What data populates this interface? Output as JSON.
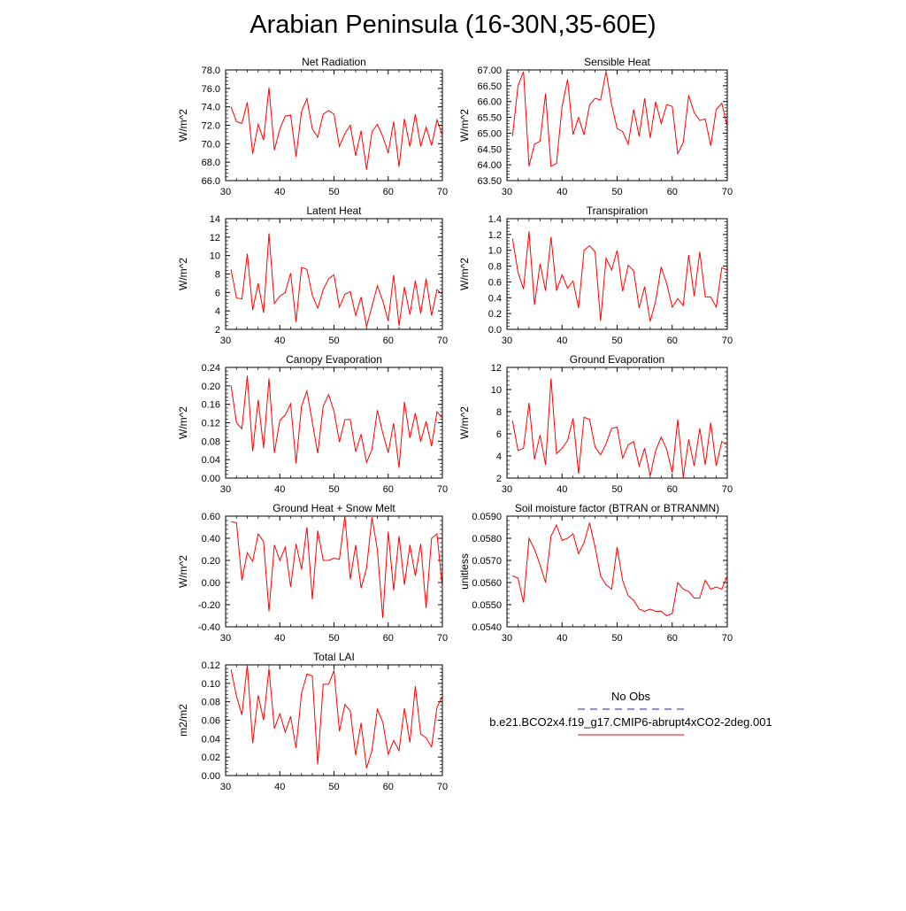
{
  "title": "Arabian Peninsula (16-30N,35-60E)",
  "colors": {
    "model_line": "#ff0000",
    "obs_line": "#2222aa",
    "axis": "#000000"
  },
  "legend": {
    "obs_label": "No Obs",
    "model_label": "b.e21.BCO2x4.f19_g17.CMIP6-abrupt4xCO2-2deg.001"
  },
  "chart_data": [
    {
      "type": "line",
      "title": "Net Radiation",
      "ylabel": "W/m^2",
      "xlim": [
        31,
        70
      ],
      "ylim": [
        66,
        78
      ],
      "xticks": [
        30,
        40,
        50,
        60,
        70
      ],
      "yticks": [
        "66.0",
        "68.0",
        "70.0",
        "72.0",
        "74.0",
        "76.0",
        "78.0"
      ],
      "x": [
        31,
        32,
        33,
        34,
        35,
        36,
        37,
        38,
        39,
        40,
        41,
        42,
        43,
        44,
        45,
        46,
        47,
        48,
        49,
        50,
        51,
        52,
        53,
        54,
        55,
        56,
        57,
        58,
        59,
        60,
        61,
        62,
        63,
        64,
        65,
        66,
        67,
        68,
        69,
        70
      ],
      "series": [
        {
          "values": [
            74.0,
            72.4,
            72.2,
            74.5,
            68.9,
            72.1,
            70.4,
            76.1,
            69.3,
            71.6,
            73.0,
            73.1,
            68.6,
            73.5,
            74.9,
            71.6,
            70.7,
            73.2,
            73.6,
            73.2,
            69.7,
            71.1,
            72.0,
            68.7,
            71.4,
            67.2,
            71.3,
            72.1,
            70.8,
            69.0,
            72.4,
            67.5,
            72.7,
            69.7,
            73.2,
            69.7,
            71.8,
            69.8,
            72.6,
            70.9
          ]
        }
      ]
    },
    {
      "type": "line",
      "title": "Sensible Heat",
      "ylabel": "W/m^2",
      "xlim": [
        31,
        70
      ],
      "ylim": [
        63.5,
        67
      ],
      "xticks": [
        30,
        40,
        50,
        60,
        70
      ],
      "yticks": [
        "63.50",
        "64.00",
        "64.50",
        "65.00",
        "65.50",
        "66.00",
        "66.50",
        "67.00"
      ],
      "x": [
        31,
        32,
        33,
        34,
        35,
        36,
        37,
        38,
        39,
        40,
        41,
        42,
        43,
        44,
        45,
        46,
        47,
        48,
        49,
        50,
        51,
        52,
        53,
        54,
        55,
        56,
        57,
        58,
        59,
        60,
        61,
        62,
        63,
        64,
        65,
        66,
        67,
        68,
        69,
        70
      ],
      "series": [
        {
          "values": [
            64.9,
            66.5,
            66.95,
            63.95,
            64.65,
            64.75,
            66.25,
            63.95,
            64.05,
            65.85,
            66.7,
            64.95,
            65.5,
            64.95,
            65.9,
            66.1,
            66.05,
            66.95,
            65.9,
            65.15,
            65.05,
            64.65,
            65.75,
            64.9,
            66.1,
            64.85,
            66.0,
            65.3,
            65.9,
            65.85,
            64.35,
            64.7,
            66.2,
            65.65,
            65.4,
            65.45,
            64.6,
            65.75,
            65.95,
            65.2
          ]
        }
      ]
    },
    {
      "type": "line",
      "title": "Latent Heat",
      "ylabel": "W/m^2",
      "xlim": [
        31,
        70
      ],
      "ylim": [
        2,
        14
      ],
      "xticks": [
        30,
        40,
        50,
        60,
        70
      ],
      "yticks": [
        "2",
        "4",
        "6",
        "8",
        "10",
        "12",
        "14"
      ],
      "x": [
        31,
        32,
        33,
        34,
        35,
        36,
        37,
        38,
        39,
        40,
        41,
        42,
        43,
        44,
        45,
        46,
        47,
        48,
        49,
        50,
        51,
        52,
        53,
        54,
        55,
        56,
        57,
        58,
        59,
        60,
        61,
        62,
        63,
        64,
        65,
        66,
        67,
        68,
        69,
        70
      ],
      "series": [
        {
          "values": [
            8.5,
            5.4,
            5.3,
            10.2,
            4.1,
            7.0,
            3.8,
            12.4,
            4.8,
            5.6,
            6.0,
            8.1,
            2.8,
            8.7,
            8.5,
            5.7,
            4.3,
            6.3,
            7.5,
            7.9,
            4.4,
            5.8,
            6.1,
            3.5,
            5.5,
            2.3,
            4.5,
            6.7,
            5.1,
            2.9,
            7.9,
            2.4,
            6.6,
            3.6,
            7.3,
            3.7,
            7.5,
            3.5,
            6.3,
            5.8
          ]
        }
      ]
    },
    {
      "type": "line",
      "title": "Transpiration",
      "ylabel": "W/m^2",
      "xlim": [
        31,
        70
      ],
      "ylim": [
        0,
        1.4
      ],
      "xticks": [
        30,
        40,
        50,
        60,
        70
      ],
      "yticks": [
        "0.0",
        "0.2",
        "0.4",
        "0.6",
        "0.8",
        "1.0",
        "1.2",
        "1.4"
      ],
      "x": [
        31,
        32,
        33,
        34,
        35,
        36,
        37,
        38,
        39,
        40,
        41,
        42,
        43,
        44,
        45,
        46,
        47,
        48,
        49,
        50,
        51,
        52,
        53,
        54,
        55,
        56,
        57,
        58,
        59,
        60,
        61,
        62,
        63,
        64,
        65,
        66,
        67,
        68,
        69,
        70
      ],
      "series": [
        {
          "values": [
            1.15,
            0.72,
            0.51,
            1.24,
            0.31,
            0.83,
            0.49,
            1.17,
            0.49,
            0.69,
            0.52,
            0.61,
            0.27,
            1.0,
            1.06,
            0.98,
            0.11,
            0.9,
            0.75,
            1.0,
            0.48,
            0.81,
            0.74,
            0.27,
            0.54,
            0.1,
            0.36,
            0.79,
            0.58,
            0.28,
            0.39,
            0.3,
            0.94,
            0.42,
            0.98,
            0.41,
            0.41,
            0.28,
            0.78,
            0.75
          ]
        }
      ]
    },
    {
      "type": "line",
      "title": "Canopy Evaporation",
      "ylabel": "W/m^2",
      "xlim": [
        31,
        70
      ],
      "ylim": [
        0,
        0.24
      ],
      "xticks": [
        30,
        40,
        50,
        60,
        70
      ],
      "yticks": [
        "0.00",
        "0.04",
        "0.08",
        "0.12",
        "0.16",
        "0.20",
        "0.24"
      ],
      "x": [
        31,
        32,
        33,
        34,
        35,
        36,
        37,
        38,
        39,
        40,
        41,
        42,
        43,
        44,
        45,
        46,
        47,
        48,
        49,
        50,
        51,
        52,
        53,
        54,
        55,
        56,
        57,
        58,
        59,
        60,
        61,
        62,
        63,
        64,
        65,
        66,
        67,
        68,
        69,
        70
      ],
      "series": [
        {
          "values": [
            0.201,
            0.12,
            0.107,
            0.222,
            0.058,
            0.17,
            0.065,
            0.216,
            0.055,
            0.125,
            0.137,
            0.161,
            0.032,
            0.156,
            0.189,
            0.121,
            0.054,
            0.156,
            0.181,
            0.145,
            0.078,
            0.127,
            0.127,
            0.057,
            0.095,
            0.034,
            0.062,
            0.147,
            0.098,
            0.055,
            0.119,
            0.022,
            0.165,
            0.087,
            0.141,
            0.079,
            0.123,
            0.069,
            0.144,
            0.13
          ]
        }
      ]
    },
    {
      "type": "line",
      "title": "Ground Evaporation",
      "ylabel": "W/m^2",
      "xlim": [
        31,
        70
      ],
      "ylim": [
        2,
        12
      ],
      "xticks": [
        30,
        40,
        50,
        60,
        70
      ],
      "yticks": [
        "2",
        "4",
        "6",
        "8",
        "10",
        "12"
      ],
      "x": [
        31,
        32,
        33,
        34,
        35,
        36,
        37,
        38,
        39,
        40,
        41,
        42,
        43,
        44,
        45,
        46,
        47,
        48,
        49,
        50,
        51,
        52,
        53,
        54,
        55,
        56,
        57,
        58,
        59,
        60,
        61,
        62,
        63,
        64,
        65,
        66,
        67,
        68,
        69,
        70
      ],
      "series": [
        {
          "values": [
            7.2,
            4.5,
            4.7,
            8.8,
            3.7,
            5.9,
            3.2,
            11.0,
            4.2,
            4.7,
            5.4,
            7.4,
            2.4,
            7.5,
            7.3,
            4.8,
            4.1,
            5.1,
            6.5,
            6.6,
            3.8,
            5.0,
            5.3,
            3.1,
            4.7,
            2.2,
            4.5,
            5.7,
            4.6,
            2.5,
            7.3,
            2.1,
            5.5,
            3.1,
            6.5,
            3.2,
            7.0,
            3.1,
            5.3,
            5.0
          ]
        }
      ]
    },
    {
      "type": "line",
      "title": "Ground Heat + Snow Melt",
      "ylabel": "W/m^2",
      "xlim": [
        31,
        70
      ],
      "ylim": [
        -0.4,
        0.6
      ],
      "xticks": [
        30,
        40,
        50,
        60,
        70
      ],
      "yticks": [
        "-0.40",
        "-0.20",
        "0.00",
        "0.20",
        "0.40",
        "0.60"
      ],
      "x": [
        31,
        32,
        33,
        34,
        35,
        36,
        37,
        38,
        39,
        40,
        41,
        42,
        43,
        44,
        45,
        46,
        47,
        48,
        49,
        50,
        51,
        52,
        53,
        54,
        55,
        56,
        57,
        58,
        59,
        60,
        61,
        62,
        63,
        64,
        65,
        66,
        67,
        68,
        69,
        70
      ],
      "series": [
        {
          "values": [
            0.55,
            0.54,
            0.02,
            0.27,
            0.19,
            0.44,
            0.37,
            -0.26,
            0.34,
            0.2,
            0.32,
            -0.04,
            0.35,
            0.12,
            0.5,
            -0.15,
            0.47,
            0.2,
            0.2,
            0.22,
            0.21,
            0.6,
            0.03,
            0.34,
            -0.05,
            0.13,
            0.59,
            0.3,
            -0.32,
            0.46,
            -0.07,
            0.42,
            -0.02,
            0.34,
            0.06,
            0.35,
            -0.23,
            0.4,
            0.44,
            -0.05
          ]
        }
      ]
    },
    {
      "type": "line",
      "title": "Soil moisture factor (BTRAN or BTRANMN)",
      "ylabel": "unitless",
      "xlim": [
        31,
        70
      ],
      "ylim": [
        0.054,
        0.059
      ],
      "xticks": [
        30,
        40,
        50,
        60,
        70
      ],
      "yticks": [
        "0.0540",
        "0.0550",
        "0.0560",
        "0.0570",
        "0.0580",
        "0.0590"
      ],
      "x": [
        31,
        32,
        33,
        34,
        35,
        36,
        37,
        38,
        39,
        40,
        41,
        42,
        43,
        44,
        45,
        46,
        47,
        48,
        49,
        50,
        51,
        52,
        53,
        54,
        55,
        56,
        57,
        58,
        59,
        60,
        61,
        62,
        63,
        64,
        65,
        66,
        67,
        68,
        69,
        70
      ],
      "series": [
        {
          "values": [
            0.0563,
            0.0562,
            0.0551,
            0.058,
            0.0575,
            0.0568,
            0.056,
            0.0581,
            0.0586,
            0.0579,
            0.058,
            0.0582,
            0.0573,
            0.0578,
            0.0587,
            0.0576,
            0.0563,
            0.0559,
            0.0557,
            0.0576,
            0.0561,
            0.0554,
            0.0552,
            0.0548,
            0.0547,
            0.0548,
            0.0547,
            0.0547,
            0.0545,
            0.0546,
            0.056,
            0.0557,
            0.0556,
            0.0553,
            0.0553,
            0.0561,
            0.0557,
            0.0558,
            0.0557,
            0.0563
          ]
        }
      ]
    },
    {
      "type": "line",
      "title": "Total LAI",
      "ylabel": "m2/m2",
      "xlim": [
        31,
        70
      ],
      "ylim": [
        0,
        0.12
      ],
      "xticks": [
        30,
        40,
        50,
        60,
        70
      ],
      "yticks": [
        "0.00",
        "0.02",
        "0.04",
        "0.06",
        "0.08",
        "0.10",
        "0.12"
      ],
      "x": [
        31,
        32,
        33,
        34,
        35,
        36,
        37,
        38,
        39,
        40,
        41,
        42,
        43,
        44,
        45,
        46,
        47,
        48,
        49,
        50,
        51,
        52,
        53,
        54,
        55,
        56,
        57,
        58,
        59,
        60,
        61,
        62,
        63,
        64,
        65,
        66,
        67,
        68,
        69,
        70
      ],
      "series": [
        {
          "values": [
            0.115,
            0.086,
            0.066,
            0.12,
            0.035,
            0.087,
            0.06,
            0.116,
            0.051,
            0.067,
            0.047,
            0.064,
            0.03,
            0.089,
            0.11,
            0.108,
            0.012,
            0.099,
            0.099,
            0.114,
            0.048,
            0.077,
            0.07,
            0.022,
            0.057,
            0.008,
            0.027,
            0.072,
            0.058,
            0.023,
            0.038,
            0.027,
            0.073,
            0.036,
            0.097,
            0.045,
            0.041,
            0.031,
            0.074,
            0.086
          ]
        }
      ]
    }
  ]
}
